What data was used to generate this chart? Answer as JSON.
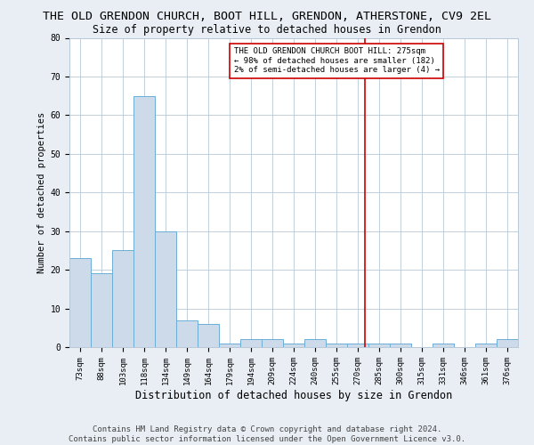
{
  "title": "THE OLD GRENDON CHURCH, BOOT HILL, GRENDON, ATHERSTONE, CV9 2EL",
  "subtitle": "Size of property relative to detached houses in Grendon",
  "xlabel": "Distribution of detached houses by size in Grendon",
  "ylabel": "Number of detached properties",
  "footer_line1": "Contains HM Land Registry data © Crown copyright and database right 2024.",
  "footer_line2": "Contains public sector information licensed under the Open Government Licence v3.0.",
  "categories": [
    "73sqm",
    "88sqm",
    "103sqm",
    "118sqm",
    "134sqm",
    "149sqm",
    "164sqm",
    "179sqm",
    "194sqm",
    "209sqm",
    "224sqm",
    "240sqm",
    "255sqm",
    "270sqm",
    "285sqm",
    "300sqm",
    "315sqm",
    "331sqm",
    "346sqm",
    "361sqm",
    "376sqm"
  ],
  "values": [
    23,
    19,
    25,
    65,
    30,
    7,
    6,
    1,
    2,
    2,
    1,
    2,
    1,
    1,
    1,
    1,
    0,
    1,
    0,
    1,
    2
  ],
  "bar_color": "#ccdaea",
  "bar_edge_color": "#6aaed6",
  "vline_color": "#cc0000",
  "vline_pos": 13.33,
  "annotation_text": "THE OLD GRENDON CHURCH BOOT HILL: 275sqm\n← 98% of detached houses are smaller (182)\n2% of semi-detached houses are larger (4) →",
  "annotation_box_facecolor": "#ffffff",
  "annotation_box_edgecolor": "#cc0000",
  "ylim": [
    0,
    80
  ],
  "yticks": [
    0,
    10,
    20,
    30,
    40,
    50,
    60,
    70,
    80
  ],
  "background_color": "#e8eef4",
  "plot_background_color": "#ffffff",
  "grid_color": "#b8c8d8",
  "title_fontsize": 9.5,
  "subtitle_fontsize": 8.5,
  "xlabel_fontsize": 8.5,
  "ylabel_fontsize": 7.5,
  "tick_fontsize": 6.5,
  "annotation_fontsize": 6.5,
  "footer_fontsize": 6.5
}
